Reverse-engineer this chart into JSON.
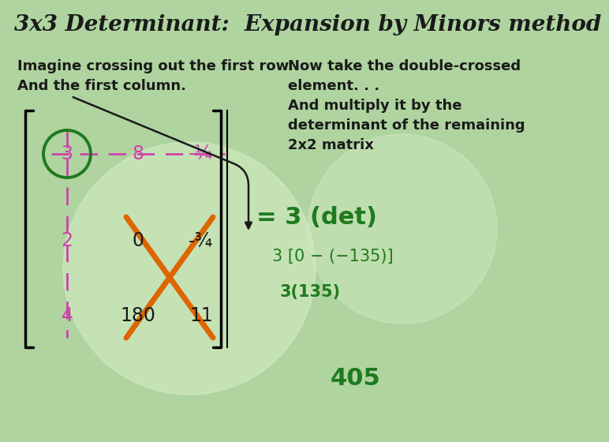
{
  "title": "3x3 Determinant:  Expansion by Minors method",
  "title_fontsize": 20,
  "title_color": "#1a1a1a",
  "bg_color": "#afd4a0",
  "text_left_line1": "Imagine crossing out the first row.",
  "text_left_line2": "And the first column.",
  "text_right_line1": "Now take the double-crossed",
  "text_right_line2": "element. . .",
  "text_right_line3": "And multiply it by the",
  "text_right_line4": "determinant of the remaining",
  "text_right_line5": "2x2 matrix",
  "matrix_row0": [
    "3",
    "8",
    "-¼"
  ],
  "matrix_row1": [
    "2",
    "0",
    "-¾"
  ],
  "matrix_row2": [
    "4",
    "180",
    "11"
  ],
  "result_line1": "= 3 (det)",
  "result_line2": "3 [0 − (−1 35)]",
  "result_line3": "3(135)",
  "result_line4": "405",
  "green_color": "#1e7a1e",
  "pink_color": "#cc44aa",
  "orange_color": "#dd6600",
  "dark_color": "#1a1a1a",
  "text_fontsize": 13,
  "matrix_fontsize": 17
}
